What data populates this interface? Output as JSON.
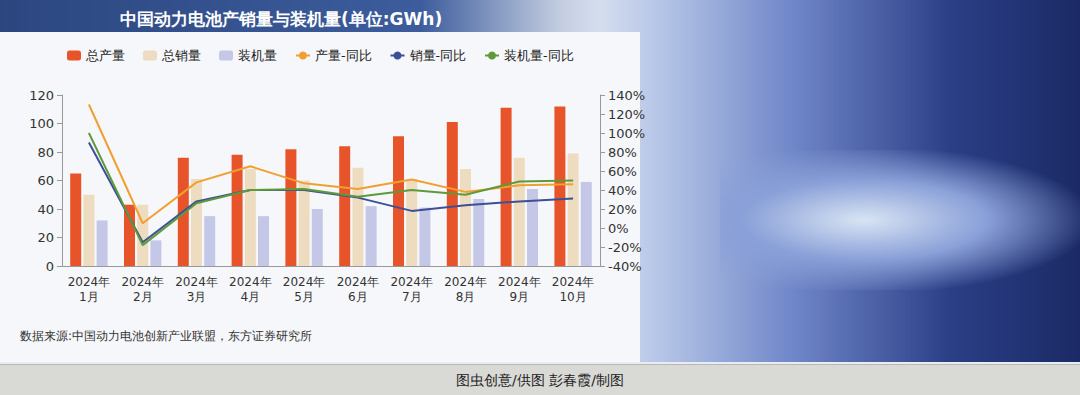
{
  "chart_data": {
    "type": "bar",
    "title": "中国动力电池产销量与装机量(单位:GWh)",
    "source": "数据来源:中国动力电池创新产业联盟，东方证券研究所",
    "credit": "图虫创意/供图 彭春霞/制图",
    "categories": [
      "2024年\n1月",
      "2024年\n2月",
      "2024年\n3月",
      "2024年\n4月",
      "2024年\n5月",
      "2024年\n6月",
      "2024年\n7月",
      "2024年\n8月",
      "2024年\n9月",
      "2024年\n10月"
    ],
    "series": [
      {
        "name": "总产量",
        "type": "bar",
        "color": "#e8542a",
        "values": [
          65,
          43,
          76,
          78,
          82,
          84,
          91,
          101,
          111,
          112
        ]
      },
      {
        "name": "总销量",
        "type": "bar",
        "color": "#eedcc0",
        "values": [
          50,
          43,
          61,
          68,
          60,
          69,
          61,
          68,
          76,
          79
        ]
      },
      {
        "name": "装机量",
        "type": "bar",
        "color": "#c4c8e6",
        "values": [
          32,
          18,
          35,
          35,
          40,
          42,
          41,
          47,
          54,
          59
        ]
      },
      {
        "name": "产量-同比",
        "type": "line",
        "axis": "y2",
        "color": "#f0a030",
        "values": [
          130,
          5,
          48,
          65,
          47,
          41,
          51,
          38,
          45,
          46
        ]
      },
      {
        "name": "销量-同比",
        "type": "line",
        "axis": "y2",
        "color": "#3d4f96",
        "values": [
          90,
          -15,
          28,
          40,
          40,
          32,
          18,
          24,
          28,
          31
        ]
      },
      {
        "name": "装机量-同比",
        "type": "line",
        "axis": "y2",
        "color": "#5e9a3a",
        "values": [
          100,
          -18,
          26,
          40,
          41,
          33,
          40,
          35,
          49,
          50
        ]
      }
    ],
    "ylim": [
      0,
      120
    ],
    "yticks": [
      0,
      20,
      40,
      60,
      80,
      100,
      120
    ],
    "y2lim": [
      -40,
      140
    ],
    "y2ticks": [
      {
        "value": -40,
        "label": "-40%"
      },
      {
        "value": -20,
        "label": "-20%"
      },
      {
        "value": 0,
        "label": "0%"
      },
      {
        "value": 20,
        "label": "20%"
      },
      {
        "value": 40,
        "label": "40%"
      },
      {
        "value": 60,
        "label": "60%"
      },
      {
        "value": 80,
        "label": "80%"
      },
      {
        "value": 100,
        "label": "100%"
      },
      {
        "value": 120,
        "label": "120%"
      },
      {
        "value": 140,
        "label": "140%"
      }
    ],
    "grid": false,
    "legend": "top"
  }
}
